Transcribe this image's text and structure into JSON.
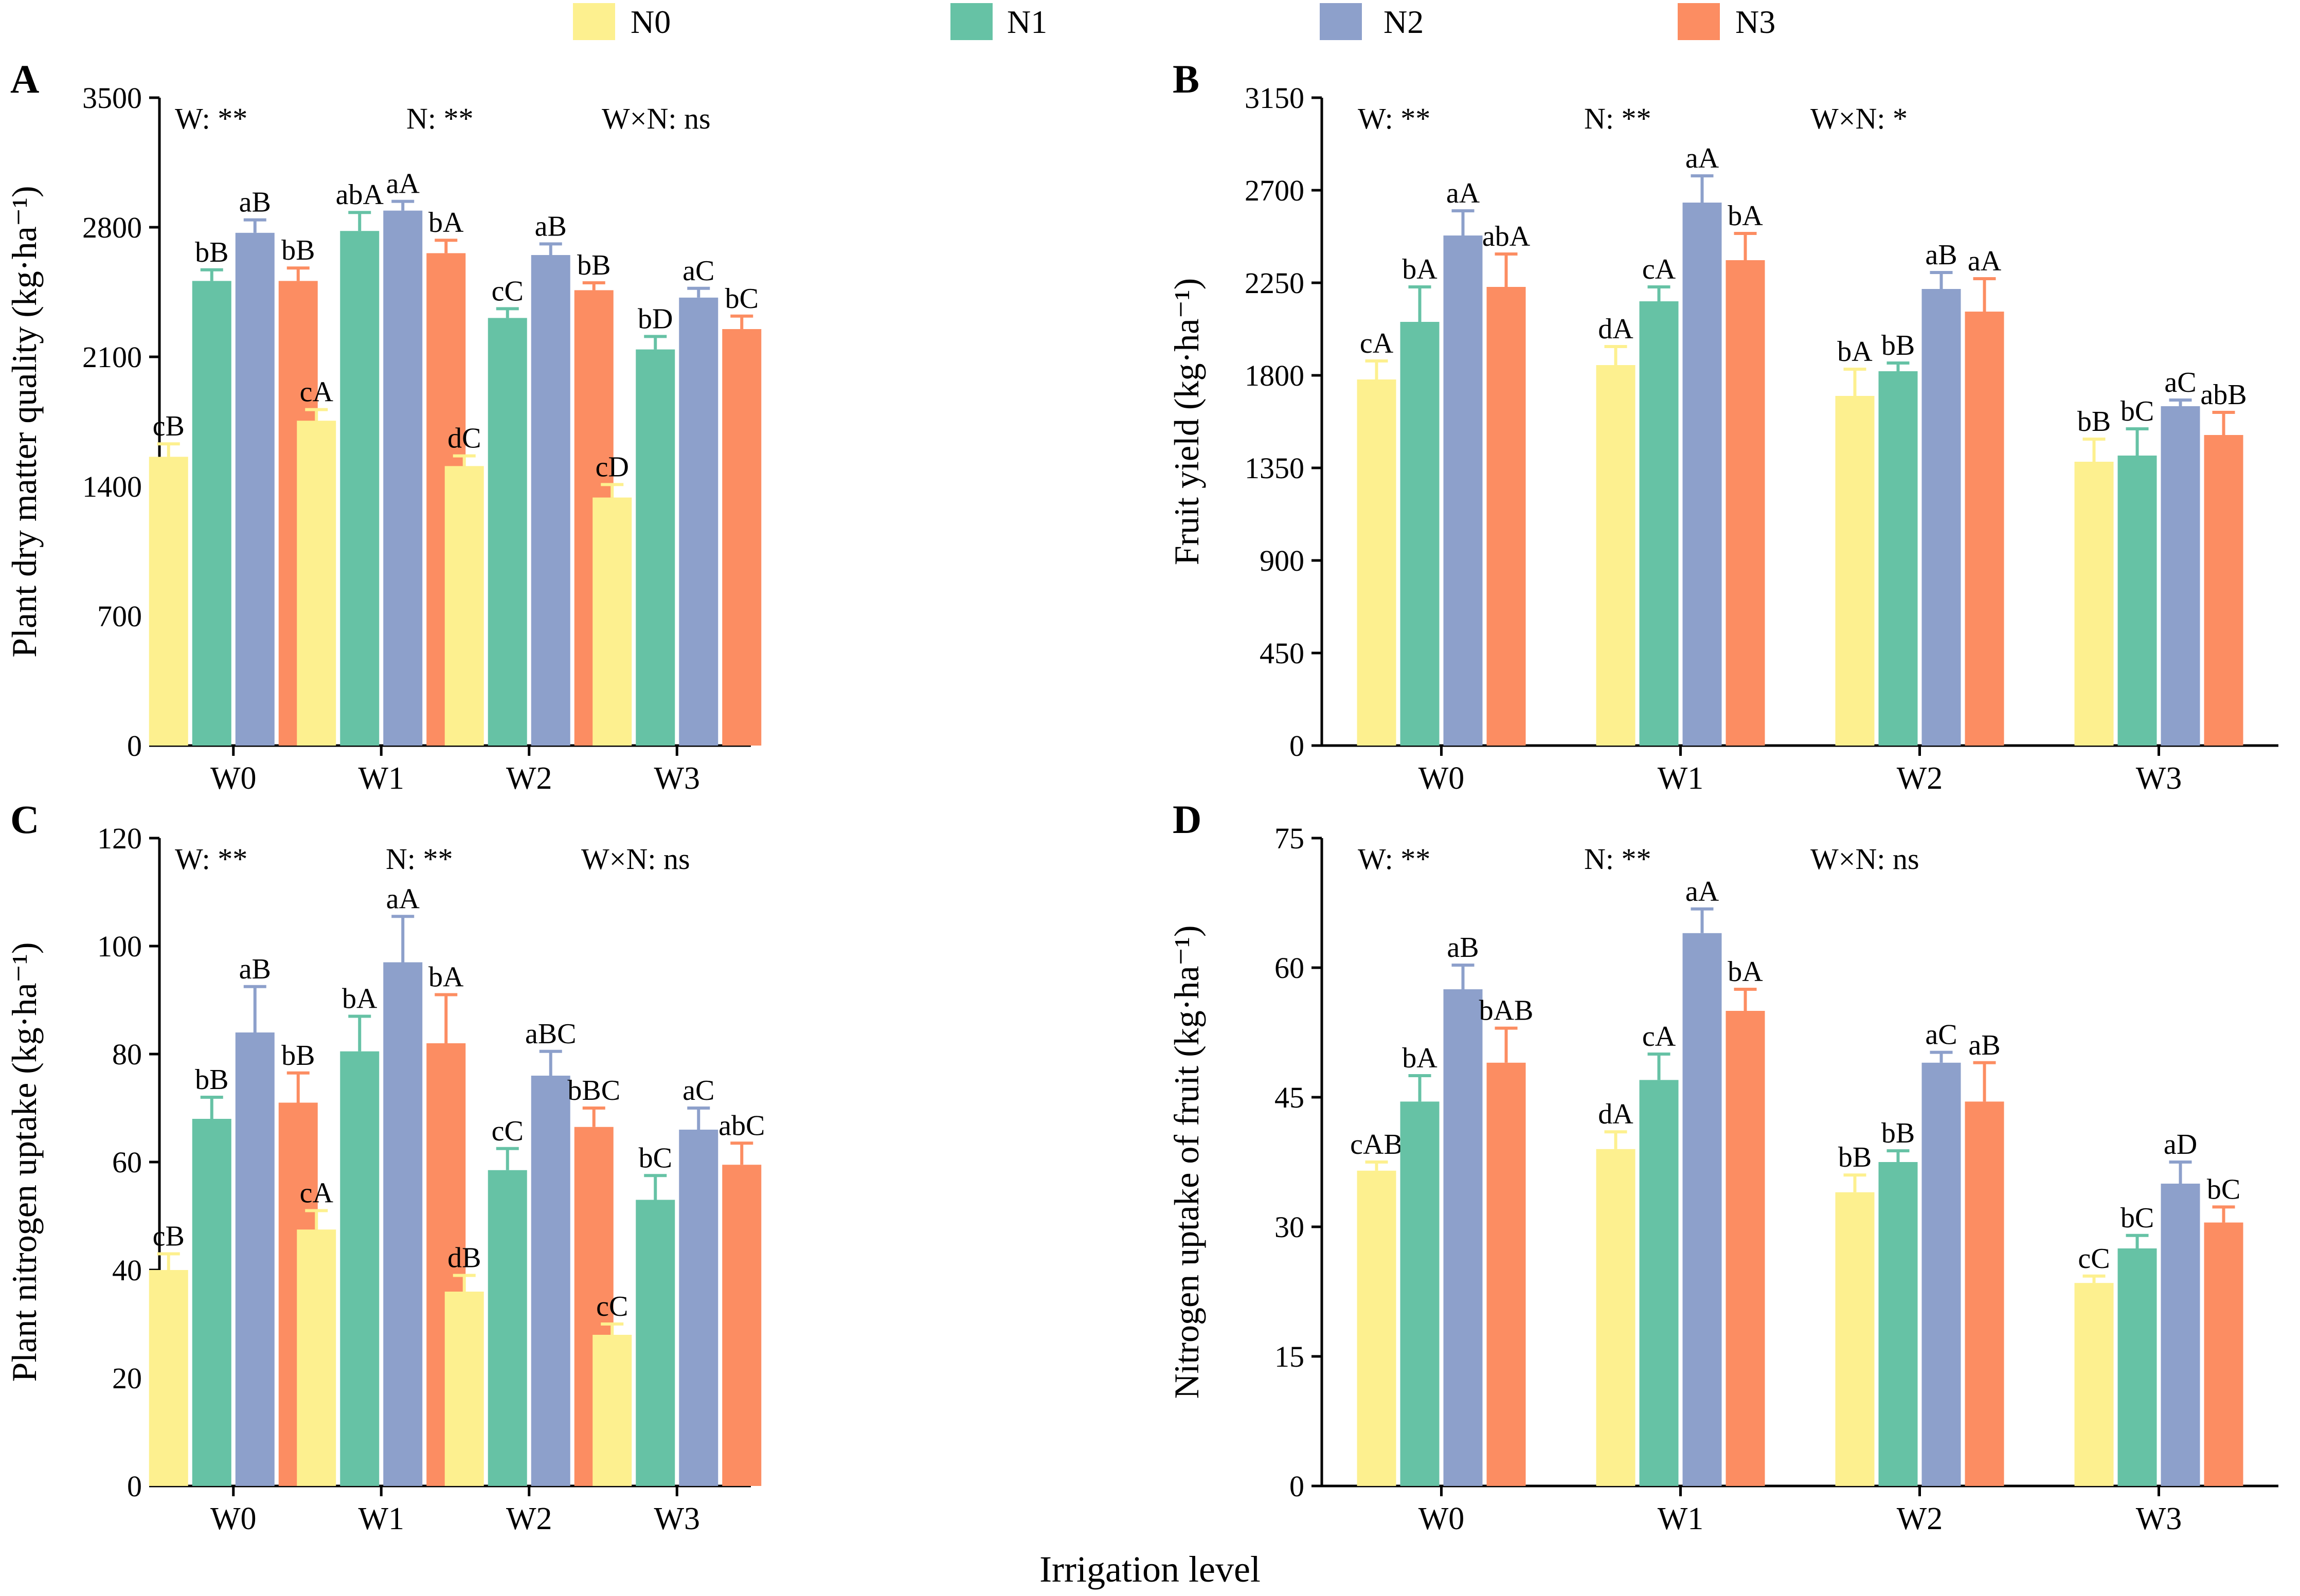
{
  "legend": {
    "items": [
      {
        "label": "N0",
        "color": "#fdf08f"
      },
      {
        "label": "N1",
        "color": "#66c2a5"
      },
      {
        "label": "N2",
        "color": "#8da0cb"
      },
      {
        "label": "N3",
        "color": "#fc8d62"
      }
    ]
  },
  "figure_xlabel": "Irrigation level",
  "chart_data": [
    {
      "id": "A",
      "type": "bar",
      "letter": "A",
      "ylabel": "Plant dry matter quality (kg·ha⁻¹)",
      "ylim": [
        0,
        3500
      ],
      "yticks": [
        0,
        700,
        1400,
        2100,
        2800,
        3500
      ],
      "categories": [
        "W0",
        "W1",
        "W2",
        "W3"
      ],
      "stats": {
        "w": "W: **",
        "n": "N: **",
        "wn": "W×N: ns"
      },
      "series": [
        {
          "name": "N0",
          "values": [
            1560,
            1755,
            1510,
            1340
          ],
          "errors": [
            70,
            60,
            55,
            70
          ],
          "labels": [
            "cB",
            "cA",
            "dC",
            "cD"
          ]
        },
        {
          "name": "N1",
          "values": [
            2510,
            2780,
            2310,
            2140
          ],
          "errors": [
            60,
            100,
            50,
            70
          ],
          "labels": [
            "bB",
            "abA",
            "cC",
            "bD"
          ]
        },
        {
          "name": "N2",
          "values": [
            2770,
            2890,
            2650,
            2420
          ],
          "errors": [
            70,
            50,
            60,
            50
          ],
          "labels": [
            "aB",
            "aA",
            "aB",
            "aC"
          ]
        },
        {
          "name": "N3",
          "values": [
            2510,
            2660,
            2460,
            2250
          ],
          "errors": [
            70,
            70,
            40,
            70
          ],
          "labels": [
            "bB",
            "bA",
            "bB",
            "bC"
          ]
        }
      ]
    },
    {
      "id": "B",
      "type": "bar",
      "letter": "B",
      "ylabel": "Fruit yield (kg·ha⁻¹)",
      "ylim": [
        0,
        3150
      ],
      "yticks": [
        0,
        450,
        900,
        1350,
        1800,
        2250,
        2700,
        3150
      ],
      "categories": [
        "W0",
        "W1",
        "W2",
        "W3"
      ],
      "stats": {
        "w": "W: **",
        "n": "N: **",
        "wn": "W×N: *"
      },
      "series": [
        {
          "name": "N0",
          "values": [
            1780,
            1850,
            1700,
            1380
          ],
          "errors": [
            90,
            90,
            130,
            110
          ],
          "labels": [
            "cA",
            "dA",
            "bA",
            "bB"
          ]
        },
        {
          "name": "N1",
          "values": [
            2060,
            2160,
            1820,
            1410
          ],
          "errors": [
            170,
            70,
            40,
            130
          ],
          "labels": [
            "bA",
            "cA",
            "bB",
            "bC"
          ]
        },
        {
          "name": "N2",
          "values": [
            2480,
            2640,
            2220,
            1650
          ],
          "errors": [
            120,
            130,
            80,
            30
          ],
          "labels": [
            "aA",
            "aA",
            "aB",
            "aC"
          ]
        },
        {
          "name": "N3",
          "values": [
            2230,
            2360,
            2110,
            1510
          ],
          "errors": [
            160,
            130,
            160,
            110
          ],
          "labels": [
            "abA",
            "bA",
            "aA",
            "abB"
          ]
        }
      ]
    },
    {
      "id": "C",
      "type": "bar",
      "letter": "C",
      "ylabel": "Plant nitrogen uptake (kg·ha⁻¹)",
      "ylim": [
        0,
        120
      ],
      "yticks": [
        0,
        20,
        40,
        60,
        80,
        100,
        120
      ],
      "categories": [
        "W0",
        "W1",
        "W2",
        "W3"
      ],
      "stats": {
        "w": "W: **",
        "n": "N: **",
        "wn": "W×N: ns"
      },
      "series": [
        {
          "name": "N0",
          "values": [
            40,
            47.5,
            36,
            28
          ],
          "errors": [
            3,
            3.5,
            3,
            2
          ],
          "labels": [
            "cB",
            "cA",
            "dB",
            "cC"
          ]
        },
        {
          "name": "N1",
          "values": [
            68,
            80.5,
            58.5,
            53
          ],
          "errors": [
            4,
            6.5,
            4,
            4.5
          ],
          "labels": [
            "bB",
            "bA",
            "cC",
            "bC"
          ]
        },
        {
          "name": "N2",
          "values": [
            84,
            97,
            76,
            66
          ],
          "errors": [
            8.5,
            8.5,
            4.5,
            4
          ],
          "labels": [
            "aB",
            "aA",
            "aBC",
            "aC"
          ]
        },
        {
          "name": "N3",
          "values": [
            71,
            82,
            66.5,
            59.5
          ],
          "errors": [
            5.5,
            9,
            3.5,
            4
          ],
          "labels": [
            "bB",
            "bA",
            "bBC",
            "abC"
          ]
        }
      ]
    },
    {
      "id": "D",
      "type": "bar",
      "letter": "D",
      "ylabel": "Nitrogen uptake of fruit (kg·ha⁻¹)",
      "ylim": [
        0,
        75
      ],
      "yticks": [
        0,
        15,
        30,
        45,
        60,
        75
      ],
      "categories": [
        "W0",
        "W1",
        "W2",
        "W3"
      ],
      "stats": {
        "w": "W: **",
        "n": "N: **",
        "wn": "W×N: ns"
      },
      "series": [
        {
          "name": "N0",
          "values": [
            36.5,
            39,
            34,
            23.5
          ],
          "errors": [
            1,
            2,
            2,
            0.8
          ],
          "labels": [
            "cAB",
            "dA",
            "bB",
            "cC"
          ]
        },
        {
          "name": "N1",
          "values": [
            44.5,
            47,
            37.5,
            27.5
          ],
          "errors": [
            3,
            3,
            1.3,
            1.5
          ],
          "labels": [
            "bA",
            "cA",
            "bB",
            "bC"
          ]
        },
        {
          "name": "N2",
          "values": [
            57.5,
            64,
            49,
            35
          ],
          "errors": [
            2.8,
            2.8,
            1.2,
            2.5
          ],
          "labels": [
            "aB",
            "aA",
            "aC",
            "aD"
          ]
        },
        {
          "name": "N3",
          "values": [
            49,
            55,
            44.5,
            30.5
          ],
          "errors": [
            4,
            2.5,
            4.5,
            1.8
          ],
          "labels": [
            "bAB",
            "bA",
            "aB",
            "bC"
          ]
        }
      ]
    }
  ]
}
